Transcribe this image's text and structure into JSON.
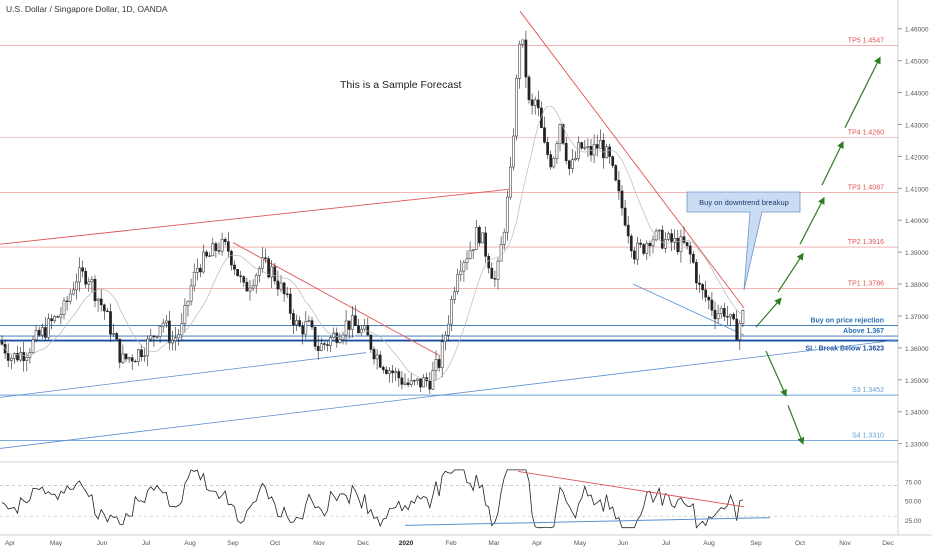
{
  "header": {
    "symbol_title": "U.S. Dollar / Singapore Dollar, 1D, OANDA"
  },
  "chart_data": {
    "type": "candlestick",
    "title": "U.S. Dollar / Singapore Dollar, 1D, OANDA",
    "annotation_main": "This is a Sample Forecast",
    "callout": "Buy on downtrend breakup",
    "price_axis": {
      "ylim": [
        1.3255,
        1.4665
      ],
      "ticks": [
        "1.46000",
        "1.45000",
        "1.44000",
        "1.43000",
        "1.42000",
        "1.41000",
        "1.40000",
        "1.39000",
        "1.38000",
        "1.37000",
        "1.36000",
        "1.35000",
        "1.34000",
        "1.33000"
      ]
    },
    "time_axis": {
      "ticks": [
        "Apr",
        "May",
        "Jun",
        "Jul",
        "Aug",
        "Sep",
        "Oct",
        "Nov",
        "Dec",
        "2020",
        "Feb",
        "Mar",
        "Apr",
        "May",
        "Jun",
        "Jul",
        "Aug",
        "Sep",
        "Oct",
        "Nov",
        "Dec"
      ]
    },
    "levels": [
      {
        "label": "TP5 1.4547",
        "value": 1.4547,
        "color": "#e05555"
      },
      {
        "label": "TP4 1.4260",
        "value": 1.426,
        "color": "#e05555"
      },
      {
        "label": "TP3 1.4087",
        "value": 1.4087,
        "color": "#e05555"
      },
      {
        "label": "TP2 1.3916",
        "value": 1.3916,
        "color": "#e05555"
      },
      {
        "label": "TP1 1.3786",
        "value": 1.3786,
        "color": "#e05555"
      },
      {
        "label": "Buy on price rejection",
        "value": 1.367,
        "color": "#2a6fb5"
      },
      {
        "label": "Above 1.367",
        "value": 1.3637,
        "color": "#2a6fb5"
      },
      {
        "label": "SL: Break Below 1.3623",
        "value": 1.3623,
        "color": "#1a4fa0"
      },
      {
        "label": "S3 1.3452",
        "value": 1.3452,
        "color": "#6aa0d8"
      },
      {
        "label": "S4 1.3310",
        "value": 1.331,
        "color": "#6aa0d8"
      }
    ],
    "price_path": [
      [
        1.362,
        0
      ],
      [
        1.357,
        12
      ],
      [
        1.359,
        26
      ],
      [
        1.364,
        40
      ],
      [
        1.368,
        52
      ],
      [
        1.372,
        64
      ],
      [
        1.382,
        76
      ],
      [
        1.383,
        88
      ],
      [
        1.377,
        96
      ],
      [
        1.372,
        104
      ],
      [
        1.365,
        112
      ],
      [
        1.356,
        122
      ],
      [
        1.358,
        136
      ],
      [
        1.362,
        150
      ],
      [
        1.369,
        162
      ],
      [
        1.362,
        172
      ],
      [
        1.366,
        182
      ],
      [
        1.378,
        190
      ],
      [
        1.386,
        198
      ],
      [
        1.388,
        208
      ],
      [
        1.392,
        218
      ],
      [
        1.391,
        228
      ],
      [
        1.385,
        236
      ],
      [
        1.378,
        244
      ],
      [
        1.382,
        252
      ],
      [
        1.386,
        262
      ],
      [
        1.384,
        272
      ],
      [
        1.378,
        282
      ],
      [
        1.372,
        290
      ],
      [
        1.366,
        298
      ],
      [
        1.367,
        308
      ],
      [
        1.36,
        318
      ],
      [
        1.362,
        328
      ],
      [
        1.365,
        338
      ],
      [
        1.368,
        348
      ],
      [
        1.366,
        358
      ],
      [
        1.364,
        366
      ],
      [
        1.358,
        376
      ],
      [
        1.355,
        384
      ],
      [
        1.352,
        394
      ],
      [
        1.35,
        402
      ],
      [
        1.348,
        410
      ],
      [
        1.349,
        420
      ],
      [
        1.35,
        430
      ],
      [
        1.356,
        440
      ],
      [
        1.372,
        450
      ],
      [
        1.386,
        458
      ],
      [
        1.389,
        466
      ],
      [
        1.392,
        472
      ],
      [
        1.397,
        478
      ],
      [
        1.39,
        486
      ],
      [
        1.38,
        496
      ],
      [
        1.398,
        504
      ],
      [
        1.412,
        510
      ],
      [
        1.44,
        516
      ],
      [
        1.458,
        520
      ],
      [
        1.452,
        524
      ],
      [
        1.433,
        530
      ],
      [
        1.438,
        536
      ],
      [
        1.423,
        544
      ],
      [
        1.418,
        552
      ],
      [
        1.431,
        560
      ],
      [
        1.415,
        570
      ],
      [
        1.423,
        580
      ],
      [
        1.421,
        590
      ],
      [
        1.424,
        600
      ],
      [
        1.418,
        610
      ],
      [
        1.408,
        618
      ],
      [
        1.4,
        626
      ],
      [
        1.39,
        634
      ],
      [
        1.391,
        642
      ],
      [
        1.395,
        650
      ],
      [
        1.394,
        660
      ],
      [
        1.393,
        672
      ],
      [
        1.392,
        684
      ],
      [
        1.388,
        692
      ],
      [
        1.378,
        700
      ],
      [
        1.375,
        708
      ],
      [
        1.371,
        716
      ],
      [
        1.372,
        724
      ],
      [
        1.367,
        732
      ],
      [
        1.365,
        736
      ],
      [
        1.368,
        740
      ],
      [
        1.371,
        744
      ]
    ],
    "oscillator": {
      "ticks": [
        "75.00",
        "50.00",
        "25.00"
      ],
      "ylim": [
        12,
        95
      ],
      "guide_levels": [
        70,
        30
      ]
    }
  }
}
